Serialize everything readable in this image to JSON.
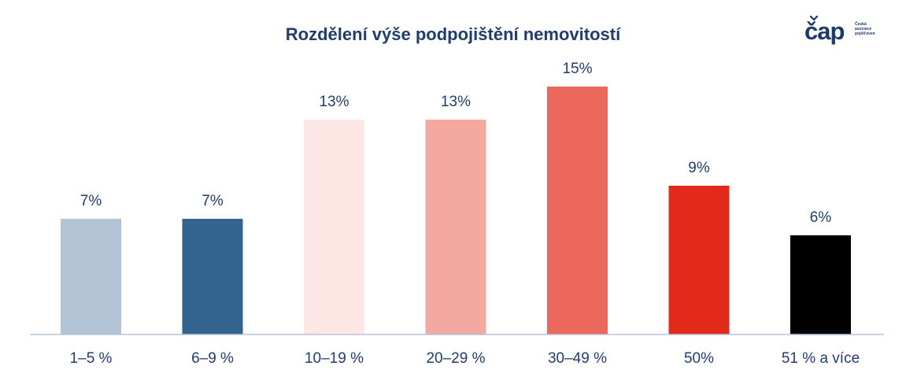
{
  "title": "Rozdělení výše podpojištění nemovitostí",
  "logo": {
    "mark": "čap",
    "lines": [
      "Česká",
      "asociace",
      "pojišťoven"
    ]
  },
  "colors": {
    "title": "#1f3d73",
    "label": "#1f3d73",
    "axis": "#b7c4d6",
    "logo": "#1c3a6e"
  },
  "chart_data": {
    "type": "bar",
    "title": "Rozdělení výše podpojištění nemovitostí",
    "categories": [
      "1–5 %",
      "6–9 %",
      "10–19 %",
      "20–29 %",
      "30–49 %",
      "50%",
      "51 % a více"
    ],
    "values": [
      7,
      7,
      13,
      13,
      15,
      9,
      6
    ],
    "value_labels": [
      "7%",
      "7%",
      "13%",
      "13%",
      "15%",
      "9%",
      "6%"
    ],
    "bar_colors": [
      "#b2c4d6",
      "#336490",
      "#fce7e5",
      "#f4a9a0",
      "#ec685c",
      "#e32a1a",
      "#000000"
    ],
    "xlabel": "",
    "ylabel": "",
    "ylim": [
      0,
      15
    ],
    "grid": false,
    "legend": "none"
  }
}
